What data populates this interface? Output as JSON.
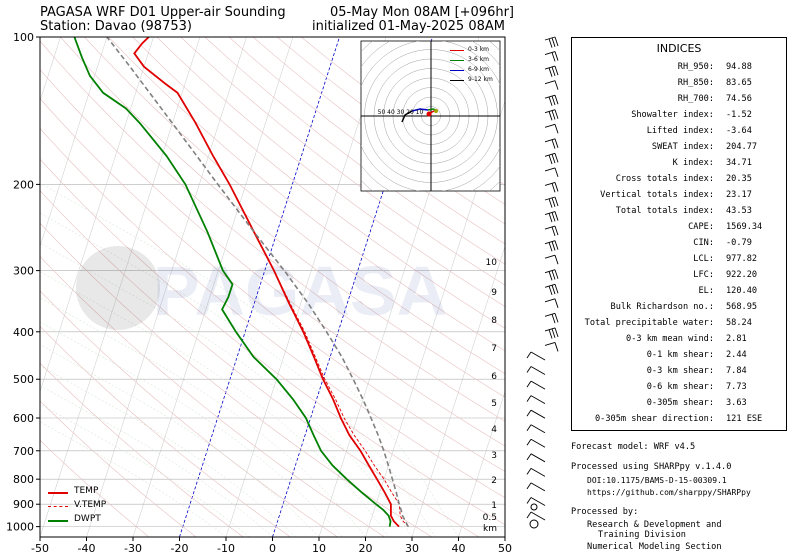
{
  "header": {
    "left_line1": "PAGASA WRF D01 Upper-air Sounding",
    "left_line2": "Station: Davao (98753)",
    "right_line1": "05-May Mon 08AM [+096hr]",
    "right_line2": "initialized 01-May-2025 08AM"
  },
  "watermark": "PAGASA",
  "chart_data": {
    "type": "line",
    "subtype": "skew-T log-P diagram",
    "x_ticks": [
      "-50",
      "-40",
      "-30",
      "-20",
      "-10",
      "0",
      "10",
      "20",
      "30",
      "40",
      "50"
    ],
    "xlim": [
      -50,
      50
    ],
    "y_ticks": [
      "100",
      "200",
      "300",
      "400",
      "500",
      "600",
      "700",
      "800",
      "900",
      "1000"
    ],
    "ylim_hpa": [
      1050,
      100
    ],
    "y_scale": "log",
    "km_ticks": [
      "10",
      "9",
      "8",
      "7",
      "6",
      "5",
      "4",
      "3",
      "2",
      "1",
      "0.5"
    ],
    "km_unit_label": "km",
    "series": [
      {
        "name": "TEMP",
        "color": "#e00000",
        "style": "solid",
        "points": [
          [
            1000,
            26.5
          ],
          [
            975,
            25
          ],
          [
            950,
            24
          ],
          [
            925,
            23.6
          ],
          [
            900,
            23.2
          ],
          [
            850,
            21
          ],
          [
            800,
            18.5
          ],
          [
            750,
            15.8
          ],
          [
            700,
            13
          ],
          [
            650,
            9.5
          ],
          [
            600,
            6.5
          ],
          [
            550,
            3.6
          ],
          [
            500,
            0
          ],
          [
            450,
            -3.5
          ],
          [
            400,
            -7.5
          ],
          [
            350,
            -12.5
          ],
          [
            300,
            -18
          ],
          [
            250,
            -25
          ],
          [
            200,
            -33.5
          ],
          [
            175,
            -39
          ],
          [
            150,
            -45
          ],
          [
            130,
            -51
          ],
          [
            125,
            -54
          ],
          [
            115,
            -60
          ],
          [
            108,
            -63
          ],
          [
            103,
            -62
          ],
          [
            100,
            -61
          ]
        ]
      },
      {
        "name": "V.TEMP",
        "color": "#e00000",
        "style": "dashed",
        "points": [
          [
            1000,
            28.5
          ],
          [
            975,
            27
          ],
          [
            950,
            26
          ],
          [
            925,
            25.5
          ],
          [
            900,
            25
          ],
          [
            850,
            22.5
          ],
          [
            800,
            20
          ],
          [
            750,
            17
          ],
          [
            700,
            14
          ],
          [
            650,
            10.5
          ],
          [
            600,
            7.2
          ],
          [
            550,
            4.1
          ],
          [
            500,
            0.4
          ],
          [
            450,
            -3.2
          ],
          [
            400,
            -7.2
          ],
          [
            350,
            -12.3
          ],
          [
            300,
            -18
          ]
        ]
      },
      {
        "name": "DWPT",
        "color": "#008000",
        "style": "solid",
        "points": [
          [
            1000,
            24.5
          ],
          [
            975,
            24.3
          ],
          [
            950,
            23.5
          ],
          [
            925,
            22
          ],
          [
            900,
            20
          ],
          [
            850,
            16
          ],
          [
            800,
            12
          ],
          [
            750,
            8
          ],
          [
            700,
            4.5
          ],
          [
            650,
            1.8
          ],
          [
            600,
            -1
          ],
          [
            550,
            -5
          ],
          [
            500,
            -10
          ],
          [
            450,
            -16.5
          ],
          [
            400,
            -22
          ],
          [
            360,
            -26.5
          ],
          [
            340,
            -26
          ],
          [
            320,
            -26
          ],
          [
            300,
            -29
          ],
          [
            250,
            -35
          ],
          [
            200,
            -43
          ],
          [
            175,
            -49
          ],
          [
            150,
            -57
          ],
          [
            140,
            -61
          ],
          [
            130,
            -67
          ],
          [
            120,
            -71
          ],
          [
            110,
            -74
          ],
          [
            100,
            -77
          ]
        ]
      },
      {
        "name": "parcel",
        "color": "#808080",
        "style": "dashed",
        "points": [
          [
            1000,
            28.5
          ],
          [
            975,
            27.5
          ],
          [
            950,
            26.5
          ],
          [
            925,
            25.8
          ],
          [
            900,
            25
          ],
          [
            850,
            23.5
          ],
          [
            800,
            21.8
          ],
          [
            750,
            20
          ],
          [
            700,
            18
          ],
          [
            650,
            15.7
          ],
          [
            600,
            13
          ],
          [
            550,
            10
          ],
          [
            500,
            6.5
          ],
          [
            450,
            2.5
          ],
          [
            400,
            -2.5
          ],
          [
            350,
            -8.4
          ],
          [
            300,
            -15.8
          ],
          [
            250,
            -25
          ],
          [
            200,
            -36
          ],
          [
            175,
            -42.5
          ],
          [
            150,
            -50
          ],
          [
            130,
            -57
          ],
          [
            115,
            -63
          ],
          [
            100,
            -70
          ]
        ]
      }
    ],
    "legend": {
      "placement": "lower-left",
      "entries": [
        "TEMP",
        "V.TEMP",
        "DWPT"
      ]
    },
    "hodograph": {
      "placement": "upper-right inset",
      "ring_labels": [
        "50",
        "40",
        "30",
        "20",
        "10"
      ],
      "legend": [
        {
          "label": "0-3 km",
          "color": "#e00000"
        },
        {
          "label": "3-6 km",
          "color": "#008000"
        },
        {
          "label": "6-9 km",
          "color": "#0000cc"
        },
        {
          "label": "9-12 km",
          "color": "#000000"
        }
      ]
    }
  },
  "indices": {
    "title": "INDICES",
    "rows": [
      {
        "label": "RH_950:",
        "value": "94.88"
      },
      {
        "label": "RH_850:",
        "value": "83.65"
      },
      {
        "label": "RH_700:",
        "value": "74.56"
      },
      {
        "label": "Showalter index:",
        "value": "-1.52"
      },
      {
        "label": "Lifted index:",
        "value": "-3.64"
      },
      {
        "label": "SWEAT index:",
        "value": "204.77"
      },
      {
        "label": "K index:",
        "value": "34.71"
      },
      {
        "label": "Cross totals index:",
        "value": "20.35"
      },
      {
        "label": "Vertical totals index:",
        "value": "23.17"
      },
      {
        "label": "Total totals index:",
        "value": "43.53"
      },
      {
        "label": "CAPE:",
        "value": "1569.34"
      },
      {
        "label": "CIN:",
        "value": "-0.79"
      },
      {
        "label": "LCL:",
        "value": "977.82"
      },
      {
        "label": "LFC:",
        "value": "922.20"
      },
      {
        "label": "EL:",
        "value": "120.40"
      },
      {
        "label": "Bulk Richardson no.:",
        "value": "568.95"
      },
      {
        "label": "Total precipitable water:",
        "value": "58.24"
      },
      {
        "label": "0-3 km mean wind:",
        "value": "2.81"
      },
      {
        "label": "0-1 km shear:",
        "value": "2.44"
      },
      {
        "label": "0-3 km shear:",
        "value": "7.84"
      },
      {
        "label": "0-6 km shear:",
        "value": "7.73"
      },
      {
        "label": "0-305m shear:",
        "value": "3.63"
      },
      {
        "label": "0-305m shear direction:",
        "value": "121 ESE"
      }
    ]
  },
  "footer": {
    "model": "Forecast model: WRF v4.5",
    "processed": "Processed using SHARPpy v.1.4.0",
    "doi": "DOI:10.1175/BAMS-D-15-00309.1",
    "url": "https://github.com/sharppy/SHARPpy",
    "by": "Processed by:",
    "org1": "Research & Development and",
    "org2": "Training Division",
    "org3": "Numerical Modeling Section"
  }
}
